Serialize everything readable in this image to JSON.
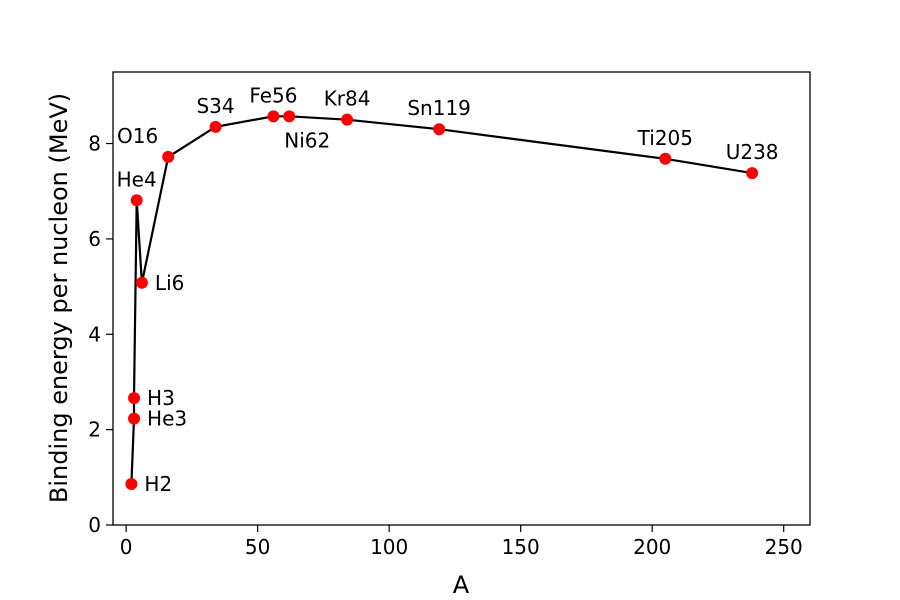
{
  "chart_data": {
    "type": "scatter",
    "title": "",
    "xlabel": "A",
    "ylabel": "Binding energy per nucleon (MeV)",
    "xlim": [
      -5,
      260
    ],
    "ylim": [
      0,
      9.5
    ],
    "xticks": [
      0,
      50,
      100,
      150,
      200,
      250
    ],
    "yticks": [
      0,
      2,
      4,
      6,
      8
    ],
    "grid": false,
    "legend": "none",
    "marker_color": "#ff0000",
    "line_color": "#000000",
    "series": [
      {
        "points": [
          {
            "label": "H2",
            "x": 2,
            "y": 0.86,
            "label_pos": "right"
          },
          {
            "label": "He3",
            "x": 3,
            "y": 2.23,
            "label_pos": "right"
          },
          {
            "label": "H3",
            "x": 3,
            "y": 2.66,
            "label_pos": "right"
          },
          {
            "label": "He4",
            "x": 4,
            "y": 6.81,
            "label_pos": "above"
          },
          {
            "label": "Li6",
            "x": 6,
            "y": 5.08,
            "label_pos": "right"
          },
          {
            "label": "O16",
            "x": 16,
            "y": 7.72,
            "label_pos": "above-left"
          },
          {
            "label": "S34",
            "x": 34,
            "y": 8.35,
            "label_pos": "above"
          },
          {
            "label": "Fe56",
            "x": 56,
            "y": 8.57,
            "label_pos": "above"
          },
          {
            "label": "Ni62",
            "x": 62,
            "y": 8.57,
            "label_pos": "below"
          },
          {
            "label": "Kr84",
            "x": 84,
            "y": 8.5,
            "label_pos": "above"
          },
          {
            "label": "Sn119",
            "x": 119,
            "y": 8.3,
            "label_pos": "above"
          },
          {
            "label": "Ti205",
            "x": 205,
            "y": 7.68,
            "label_pos": "above"
          },
          {
            "label": "U238",
            "x": 238,
            "y": 7.38,
            "label_pos": "above"
          }
        ]
      }
    ]
  }
}
